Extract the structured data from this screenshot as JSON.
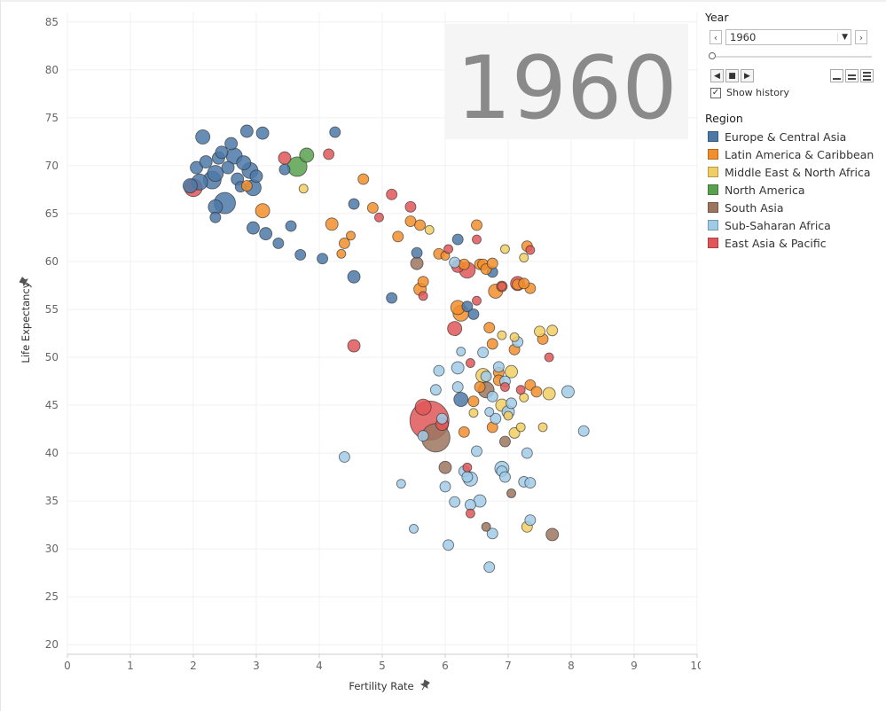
{
  "year_display": "1960",
  "controls": {
    "year_title": "Year",
    "year_value": "1960",
    "show_history_label": "Show history",
    "show_history_checked": true,
    "slider_position": 0
  },
  "legend": {
    "title": "Region",
    "items": [
      {
        "label": "Europe & Central Asia",
        "color": "#4e79a7"
      },
      {
        "label": "Latin America & Caribbean",
        "color": "#f28e2b"
      },
      {
        "label": "Middle East & North Africa",
        "color": "#f1ce63"
      },
      {
        "label": "North America",
        "color": "#59a14f"
      },
      {
        "label": "South Asia",
        "color": "#9c755f"
      },
      {
        "label": "Sub-Saharan Africa",
        "color": "#a0cbe8"
      },
      {
        "label": "East Asia & Pacific",
        "color": "#e15759"
      }
    ]
  },
  "chart_data": {
    "type": "scatter",
    "xlabel": "Fertility Rate",
    "ylabel": "Life Expectancy",
    "xlim": [
      0,
      10
    ],
    "ylim": [
      19,
      86
    ],
    "x_ticks": [
      0,
      1,
      2,
      3,
      4,
      5,
      6,
      7,
      8,
      9,
      10
    ],
    "y_ticks": [
      20,
      25,
      30,
      35,
      40,
      45,
      50,
      55,
      60,
      65,
      70,
      75,
      80,
      85
    ],
    "grid": true,
    "legend_placement": "right",
    "region_keys": [
      "eca",
      "lac",
      "mena",
      "na",
      "sa",
      "ssa",
      "eap"
    ],
    "colors": {
      "eca": "#4e79a7",
      "lac": "#f28e2b",
      "mena": "#f1ce63",
      "na": "#59a14f",
      "sa": "#9c755f",
      "ssa": "#a0cbe8",
      "eap": "#e15759"
    },
    "points": [
      [
        "eca",
        1.95,
        67.9,
        8
      ],
      [
        "eca",
        2.05,
        69.8,
        7
      ],
      [
        "eca",
        2.15,
        73,
        8
      ],
      [
        "eca",
        2.1,
        68.3,
        9
      ],
      [
        "eca",
        2.2,
        70.4,
        7
      ],
      [
        "eca",
        2.3,
        68.5,
        10
      ],
      [
        "eca",
        2.35,
        69.2,
        9
      ],
      [
        "eca",
        2.4,
        70.8,
        7
      ],
      [
        "eca",
        2.45,
        71.4,
        7
      ],
      [
        "eca",
        2.35,
        65.7,
        8
      ],
      [
        "eca",
        2.35,
        64.6,
        6
      ],
      [
        "eca",
        2.5,
        66.1,
        12
      ],
      [
        "eca",
        2.55,
        69.8,
        7
      ],
      [
        "eca",
        2.6,
        72.3,
        7
      ],
      [
        "eca",
        2.65,
        71,
        9
      ],
      [
        "eca",
        2.7,
        68.6,
        7
      ],
      [
        "eca",
        2.75,
        67.8,
        6
      ],
      [
        "eca",
        2.8,
        70.3,
        8
      ],
      [
        "eca",
        2.85,
        73.6,
        7
      ],
      [
        "eca",
        2.9,
        69.5,
        9
      ],
      [
        "eca",
        2.95,
        67.7,
        9
      ],
      [
        "eca",
        3.0,
        68.9,
        7
      ],
      [
        "eca",
        3.1,
        73.4,
        7
      ],
      [
        "eca",
        2.95,
        63.5,
        7
      ],
      [
        "eca",
        3.15,
        62.9,
        7
      ],
      [
        "eca",
        3.35,
        61.9,
        6
      ],
      [
        "eca",
        3.45,
        69.6,
        6
      ],
      [
        "eca",
        3.55,
        63.7,
        6
      ],
      [
        "eca",
        3.7,
        60.7,
        6
      ],
      [
        "eca",
        4.05,
        60.3,
        6
      ],
      [
        "eca",
        4.25,
        73.5,
        6
      ],
      [
        "eca",
        4.55,
        58.4,
        7
      ],
      [
        "eca",
        4.55,
        66,
        6
      ],
      [
        "eca",
        5.15,
        56.2,
        6
      ],
      [
        "eca",
        5.55,
        60.9,
        6
      ],
      [
        "eca",
        6.2,
        62.3,
        6
      ],
      [
        "eca",
        6.35,
        55.3,
        6
      ],
      [
        "eca",
        6.45,
        54.5,
        6
      ],
      [
        "eca",
        6.25,
        45.6,
        8
      ],
      [
        "eca",
        6.75,
        58.9,
        6
      ],
      [
        "lac",
        2.85,
        67.9,
        6
      ],
      [
        "lac",
        3.1,
        65.3,
        8
      ],
      [
        "lac",
        4.2,
        63.9,
        7
      ],
      [
        "lac",
        4.35,
        60.8,
        5
      ],
      [
        "lac",
        4.4,
        61.9,
        6
      ],
      [
        "lac",
        4.5,
        62.7,
        5
      ],
      [
        "lac",
        4.7,
        68.6,
        6
      ],
      [
        "lac",
        4.85,
        65.6,
        6
      ],
      [
        "lac",
        5.25,
        62.6,
        6
      ],
      [
        "lac",
        5.45,
        64.2,
        6
      ],
      [
        "lac",
        5.6,
        63.8,
        6
      ],
      [
        "lac",
        5.65,
        57.9,
        6
      ],
      [
        "lac",
        5.6,
        57.1,
        7
      ],
      [
        "lac",
        5.9,
        60.8,
        6
      ],
      [
        "lac",
        6.0,
        60.6,
        5
      ],
      [
        "lac",
        6.3,
        59.7,
        6
      ],
      [
        "lac",
        6.5,
        63.8,
        6
      ],
      [
        "lac",
        6.55,
        59.7,
        6
      ],
      [
        "lac",
        6.6,
        59.7,
        6
      ],
      [
        "lac",
        6.65,
        59.2,
        6
      ],
      [
        "lac",
        6.75,
        59.8,
        6
      ],
      [
        "lac",
        6.8,
        56.9,
        8
      ],
      [
        "lac",
        6.9,
        57.4,
        6
      ],
      [
        "lac",
        7.15,
        57.6,
        6
      ],
      [
        "lac",
        7.3,
        61.6,
        6
      ],
      [
        "lac",
        7.35,
        57.2,
        6
      ],
      [
        "lac",
        7.25,
        57.7,
        6
      ],
      [
        "lac",
        6.2,
        55.2,
        8
      ],
      [
        "lac",
        6.25,
        54.6,
        9
      ],
      [
        "lac",
        6.7,
        53.1,
        6
      ],
      [
        "lac",
        6.75,
        51.4,
        6
      ],
      [
        "lac",
        7.1,
        50.8,
        6
      ],
      [
        "lac",
        7.55,
        51.9,
        6
      ],
      [
        "lac",
        6.85,
        48.4,
        6
      ],
      [
        "lac",
        6.85,
        47.6,
        6
      ],
      [
        "lac",
        7.35,
        47.1,
        6
      ],
      [
        "lac",
        7.45,
        46.4,
        6
      ],
      [
        "lac",
        6.55,
        46.9,
        6
      ],
      [
        "lac",
        6.45,
        45.4,
        6
      ],
      [
        "lac",
        6.75,
        42.7,
        6
      ],
      [
        "lac",
        6.3,
        42.2,
        6
      ],
      [
        "mena",
        3.75,
        67.6,
        5
      ],
      [
        "mena",
        5.75,
        63.3,
        5
      ],
      [
        "mena",
        6.95,
        61.3,
        5
      ],
      [
        "mena",
        7.25,
        60.4,
        5
      ],
      [
        "mena",
        6.9,
        52.3,
        5
      ],
      [
        "mena",
        7.1,
        52.1,
        5
      ],
      [
        "mena",
        7.5,
        52.7,
        6
      ],
      [
        "mena",
        7.7,
        52.8,
        6
      ],
      [
        "mena",
        6.6,
        48.1,
        8
      ],
      [
        "mena",
        7.05,
        48.5,
        7
      ],
      [
        "mena",
        6.9,
        45,
        7
      ],
      [
        "mena",
        7.65,
        46.2,
        7
      ],
      [
        "mena",
        7.25,
        45.8,
        5
      ],
      [
        "mena",
        6.45,
        44.2,
        5
      ],
      [
        "mena",
        7.0,
        43.9,
        5
      ],
      [
        "mena",
        7.2,
        42.7,
        5
      ],
      [
        "mena",
        7.55,
        42.7,
        5
      ],
      [
        "mena",
        7.1,
        42.1,
        6
      ],
      [
        "mena",
        7.3,
        32.3,
        6
      ],
      [
        "na",
        3.65,
        69.9,
        11
      ],
      [
        "na",
        3.8,
        71.1,
        8
      ],
      [
        "sa",
        5.55,
        59.8,
        7
      ],
      [
        "sa",
        6.65,
        46.6,
        9
      ],
      [
        "sa",
        5.85,
        41.6,
        16
      ],
      [
        "sa",
        6.0,
        38.5,
        7
      ],
      [
        "sa",
        6.95,
        41.2,
        6
      ],
      [
        "sa",
        7.05,
        35.8,
        5
      ],
      [
        "sa",
        6.65,
        32.3,
        5
      ],
      [
        "sa",
        7.7,
        31.5,
        7
      ],
      [
        "ssa",
        4.4,
        39.6,
        6
      ],
      [
        "ssa",
        5.3,
        36.8,
        5
      ],
      [
        "ssa",
        5.5,
        32.1,
        5
      ],
      [
        "ssa",
        5.65,
        41.8,
        6
      ],
      [
        "ssa",
        5.85,
        46.6,
        6
      ],
      [
        "ssa",
        5.9,
        48.6,
        6
      ],
      [
        "ssa",
        5.95,
        43.6,
        6
      ],
      [
        "ssa",
        6.0,
        36.5,
        6
      ],
      [
        "ssa",
        6.05,
        30.4,
        6
      ],
      [
        "ssa",
        6.15,
        34.9,
        6
      ],
      [
        "ssa",
        6.15,
        59.9,
        6
      ],
      [
        "ssa",
        6.25,
        50.6,
        5
      ],
      [
        "ssa",
        6.2,
        48.9,
        7
      ],
      [
        "ssa",
        6.2,
        46.9,
        6
      ],
      [
        "ssa",
        6.3,
        38.1,
        6
      ],
      [
        "ssa",
        6.35,
        37.5,
        6
      ],
      [
        "ssa",
        6.4,
        34.6,
        6
      ],
      [
        "ssa",
        6.4,
        37.3,
        8
      ],
      [
        "ssa",
        6.5,
        40.2,
        6
      ],
      [
        "ssa",
        6.55,
        35,
        7
      ],
      [
        "ssa",
        6.6,
        50.5,
        6
      ],
      [
        "ssa",
        6.65,
        48,
        6
      ],
      [
        "ssa",
        6.7,
        44.3,
        5
      ],
      [
        "ssa",
        6.75,
        45.9,
        6
      ],
      [
        "ssa",
        6.75,
        31.6,
        6
      ],
      [
        "ssa",
        6.7,
        28.1,
        6
      ],
      [
        "ssa",
        6.8,
        43.6,
        6
      ],
      [
        "ssa",
        6.85,
        49,
        6
      ],
      [
        "ssa",
        6.9,
        38.4,
        8
      ],
      [
        "ssa",
        6.9,
        38.1,
        6
      ],
      [
        "ssa",
        6.95,
        37.5,
        6
      ],
      [
        "ssa",
        7.0,
        44.3,
        7
      ],
      [
        "ssa",
        7.05,
        45.2,
        6
      ],
      [
        "ssa",
        7.15,
        51.6,
        6
      ],
      [
        "ssa",
        7.25,
        37,
        6
      ],
      [
        "ssa",
        7.35,
        33,
        6
      ],
      [
        "ssa",
        7.35,
        36.9,
        6
      ],
      [
        "ssa",
        7.3,
        40,
        6
      ],
      [
        "ssa",
        7.95,
        46.4,
        7
      ],
      [
        "ssa",
        8.2,
        42.3,
        6
      ],
      [
        "ssa",
        6.95,
        47.5,
        6
      ],
      [
        "eap",
        2.0,
        67.7,
        10
      ],
      [
        "eap",
        3.45,
        70.8,
        7
      ],
      [
        "eap",
        4.15,
        71.2,
        6
      ],
      [
        "eap",
        4.55,
        51.2,
        7
      ],
      [
        "eap",
        4.95,
        64.6,
        5
      ],
      [
        "eap",
        5.15,
        67,
        6
      ],
      [
        "eap",
        5.45,
        65.7,
        6
      ],
      [
        "eap",
        5.65,
        56.4,
        5
      ],
      [
        "eap",
        6.05,
        61.3,
        5
      ],
      [
        "eap",
        6.2,
        59.5,
        7
      ],
      [
        "eap",
        6.35,
        59.1,
        9
      ],
      [
        "eap",
        6.5,
        55.9,
        5
      ],
      [
        "eap",
        6.5,
        62.3,
        5
      ],
      [
        "eap",
        6.15,
        53,
        8
      ],
      [
        "eap",
        6.4,
        49.4,
        5
      ],
      [
        "eap",
        6.9,
        57.4,
        5
      ],
      [
        "eap",
        7.15,
        57.7,
        8
      ],
      [
        "eap",
        7.35,
        61.2,
        5
      ],
      [
        "eap",
        7.65,
        50,
        5
      ],
      [
        "eap",
        7.2,
        46.6,
        5
      ],
      [
        "eap",
        6.95,
        46.9,
        5
      ],
      [
        "eap",
        5.65,
        44.8,
        9
      ],
      [
        "eap",
        5.75,
        43.4,
        22
      ],
      [
        "eap",
        5.95,
        43,
        7
      ],
      [
        "eap",
        6.35,
        38.5,
        5
      ],
      [
        "eap",
        6.4,
        33.7,
        5
      ]
    ]
  }
}
